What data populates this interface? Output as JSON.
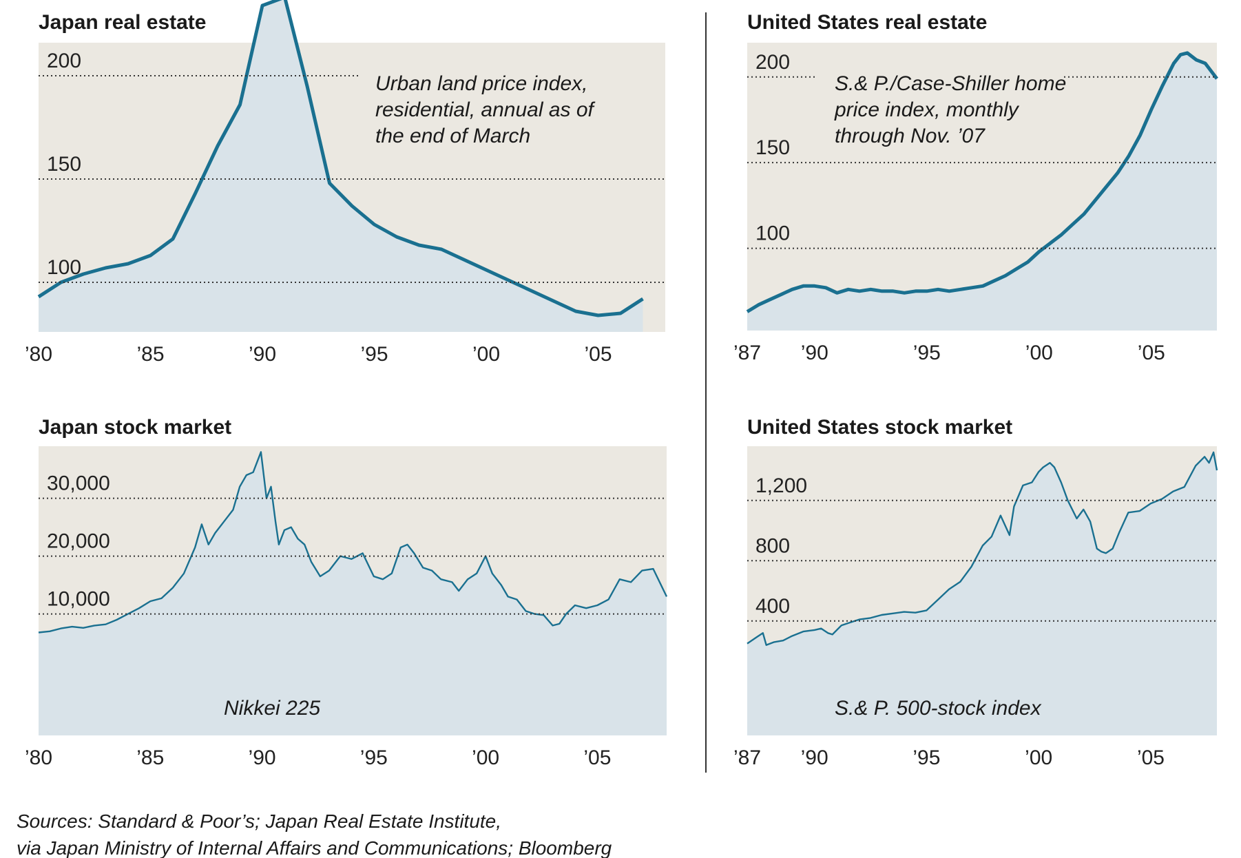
{
  "colors": {
    "background": "#ffffff",
    "plot_bg": "#ebe8e1",
    "fill": "#d9e3e9",
    "line": "#1a7090",
    "text": "#1a1a1a"
  },
  "sources": [
    "Sources: Standard & Poor’s; Japan Real Estate Institute,",
    "via Japan Ministry of Internal Affairs and Communications; Bloomberg"
  ],
  "chart_data": [
    {
      "id": "japan_real_estate",
      "type": "area",
      "title": "Japan real estate",
      "annotation": [
        "Urban land price index,",
        "residential, annual as of",
        "the end of March"
      ],
      "xlim": [
        1980,
        2008
      ],
      "ylim": [
        76,
        216
      ],
      "yticks": [
        200,
        150,
        100
      ],
      "ytick_labels": [
        "200",
        "150",
        "100"
      ],
      "xticks": [
        1980,
        1985,
        1990,
        1995,
        2000,
        2005
      ],
      "xtick_labels": [
        "’80",
        "’85",
        "’90",
        "’95",
        "’00",
        "’05"
      ],
      "x": [
        1980,
        1981,
        1982,
        1983,
        1984,
        1985,
        1986,
        1987,
        1988,
        1989,
        1990,
        1991,
        1992,
        1993,
        1994,
        1995,
        1996,
        1997,
        1998,
        1999,
        2000,
        2001,
        2002,
        2003,
        2004,
        2005,
        2006,
        2007
      ],
      "y": [
        93,
        100,
        104,
        107,
        109,
        113,
        121,
        143,
        166,
        186,
        234,
        238,
        195,
        148,
        137,
        128,
        122,
        118,
        116,
        111,
        106,
        101,
        96,
        91,
        86,
        84,
        85,
        92
      ]
    },
    {
      "id": "us_real_estate",
      "type": "area",
      "title": "United States real estate",
      "annotation": [
        "S.& P./Case-Shiller home",
        "price index, monthly",
        "through Nov. ’07"
      ],
      "xlim": [
        1987,
        2007.92
      ],
      "ylim": [
        52,
        220
      ],
      "yticks": [
        200,
        150,
        100
      ],
      "ytick_labels": [
        "200",
        "150",
        "100"
      ],
      "xticks": [
        1987,
        1990,
        1995,
        2000,
        2005
      ],
      "xtick_labels": [
        "’87",
        "’90",
        "’95",
        "’00",
        "’05"
      ],
      "x": [
        1987,
        1987.5,
        1988,
        1988.5,
        1989,
        1989.5,
        1990,
        1990.5,
        1991,
        1991.5,
        1992,
        1992.5,
        1993,
        1993.5,
        1994,
        1994.5,
        1995,
        1995.5,
        1996,
        1996.5,
        1997,
        1997.5,
        1998,
        1998.5,
        1999,
        1999.5,
        2000,
        2000.5,
        2001,
        2001.5,
        2002,
        2002.5,
        2003,
        2003.5,
        2004,
        2004.5,
        2005,
        2005.5,
        2006,
        2006.3,
        2006.6,
        2007,
        2007.4,
        2007.92
      ],
      "y": [
        63,
        67,
        70,
        73,
        76,
        78,
        78,
        77,
        74,
        76,
        75,
        76,
        75,
        75,
        74,
        75,
        75,
        76,
        75,
        76,
        77,
        78,
        81,
        84,
        88,
        92,
        98,
        103,
        108,
        114,
        120,
        128,
        136,
        144,
        154,
        166,
        181,
        195,
        208,
        213,
        214,
        210,
        208,
        199
      ]
    },
    {
      "id": "japan_stock_market",
      "type": "line",
      "title": "Japan stock market",
      "annotation": [
        "Nikkei 225"
      ],
      "xlim": [
        1980,
        2008.1
      ],
      "ylim": [
        -11000,
        39000
      ],
      "yticks": [
        30000,
        20000,
        10000
      ],
      "ytick_labels": [
        "30,000",
        "20,000",
        "10,000"
      ],
      "xticks": [
        1980,
        1985,
        1990,
        1995,
        2000,
        2005
      ],
      "xtick_labels": [
        "’80",
        "’85",
        "’90",
        "’95",
        "’00",
        "’05"
      ],
      "x": [
        1980,
        1980.5,
        1981,
        1981.5,
        1982,
        1982.5,
        1983,
        1983.5,
        1984,
        1984.5,
        1985,
        1985.5,
        1986,
        1986.5,
        1987,
        1987.3,
        1987.6,
        1987.9,
        1988.3,
        1988.7,
        1989,
        1989.3,
        1989.6,
        1989.95,
        1990.2,
        1990.4,
        1990.6,
        1990.75,
        1991,
        1991.3,
        1991.6,
        1991.9,
        1992.2,
        1992.6,
        1993,
        1993.5,
        1994,
        1994.5,
        1995,
        1995.4,
        1995.8,
        1996.2,
        1996.5,
        1996.8,
        1997.2,
        1997.6,
        1998,
        1998.5,
        1998.8,
        1999.2,
        1999.6,
        2000,
        2000.3,
        2000.7,
        2001,
        2001.4,
        2001.8,
        2002.2,
        2002.6,
        2003,
        2003.3,
        2003.6,
        2004,
        2004.5,
        2005,
        2005.5,
        2006,
        2006.5,
        2007,
        2007.5,
        2008.1
      ],
      "y": [
        6800,
        7000,
        7500,
        7800,
        7600,
        8000,
        8200,
        9000,
        10000,
        11000,
        12200,
        12700,
        14500,
        17000,
        21500,
        25500,
        22000,
        24000,
        26000,
        28000,
        32000,
        34000,
        34500,
        38000,
        30000,
        32000,
        26000,
        22000,
        24500,
        25000,
        23000,
        22000,
        19000,
        16500,
        17500,
        20000,
        19500,
        20500,
        16500,
        16000,
        17000,
        21500,
        22000,
        20500,
        18000,
        17500,
        16000,
        15500,
        14000,
        16000,
        17000,
        20000,
        17000,
        15000,
        13000,
        12500,
        10500,
        10000,
        9800,
        8000,
        8300,
        10000,
        11500,
        11000,
        11500,
        12500,
        16000,
        15500,
        17500,
        17800,
        13000
      ]
    },
    {
      "id": "us_stock_market",
      "type": "line",
      "title": "United States stock market",
      "annotation": [
        "S.& P. 500-stock index"
      ],
      "xlim": [
        1987,
        2007.95
      ],
      "ylim": [
        -360,
        1560
      ],
      "yticks": [
        1200,
        800,
        400
      ],
      "ytick_labels": [
        "1,200",
        "800",
        "400"
      ],
      "xticks": [
        1987,
        1990,
        1995,
        2000,
        2005
      ],
      "xtick_labels": [
        "’87",
        "’90",
        "’95",
        "’00",
        "’05"
      ],
      "x": [
        1987,
        1987.4,
        1987.7,
        1987.85,
        1988.2,
        1988.6,
        1989,
        1989.5,
        1990,
        1990.3,
        1990.6,
        1990.8,
        1991.2,
        1991.6,
        1992,
        1992.5,
        1993,
        1993.5,
        1994,
        1994.5,
        1995,
        1995.5,
        1996,
        1996.5,
        1997,
        1997.5,
        1997.9,
        1998.3,
        1998.7,
        1998.9,
        1999.3,
        1999.7,
        2000,
        2000.2,
        2000.5,
        2000.7,
        2001,
        2001.3,
        2001.7,
        2002,
        2002.3,
        2002.6,
        2002.8,
        2003,
        2003.3,
        2003.6,
        2004,
        2004.5,
        2005,
        2005.5,
        2006,
        2006.5,
        2007,
        2007.4,
        2007.6,
        2007.8,
        2007.95
      ],
      "y": [
        250,
        290,
        320,
        240,
        260,
        270,
        300,
        330,
        340,
        350,
        320,
        310,
        370,
        390,
        410,
        420,
        440,
        450,
        460,
        455,
        470,
        540,
        610,
        660,
        760,
        900,
        960,
        1100,
        970,
        1160,
        1300,
        1320,
        1390,
        1420,
        1450,
        1420,
        1320,
        1200,
        1080,
        1140,
        1060,
        880,
        860,
        850,
        880,
        990,
        1120,
        1130,
        1180,
        1210,
        1260,
        1290,
        1430,
        1490,
        1450,
        1520,
        1400
      ]
    }
  ]
}
